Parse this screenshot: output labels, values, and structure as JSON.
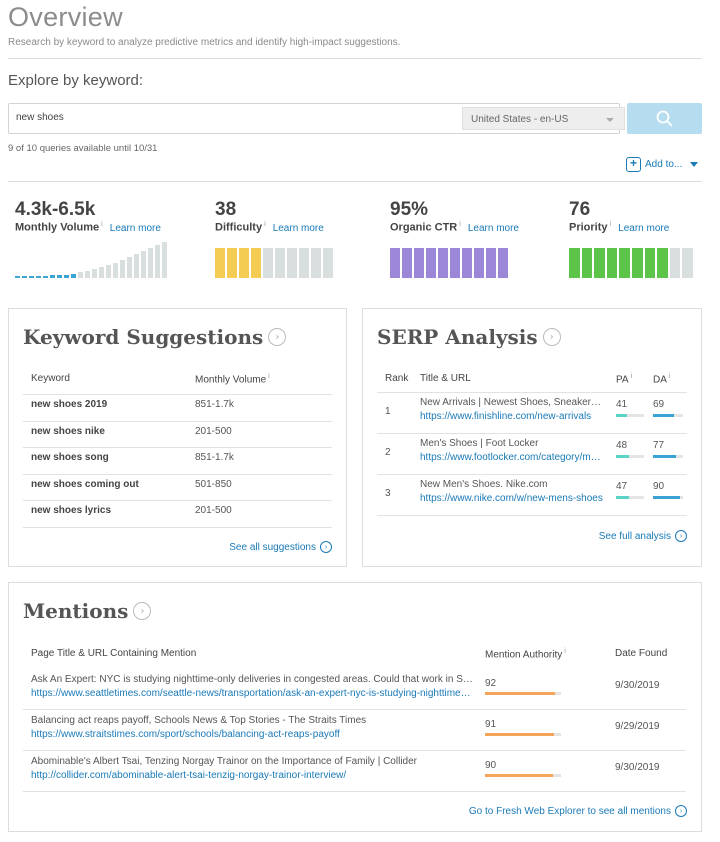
{
  "header": {
    "title": "Overview",
    "subtitle": "Research by keyword to analyze predictive metrics and identify high-impact suggestions."
  },
  "search": {
    "heading": "Explore by keyword:",
    "value": "new shoes",
    "locale": "United States - en-US",
    "queries_note": "9 of 10 queries available until 10/31",
    "add_to_label": "Add to...",
    "add_to_icon": "plus-box-icon",
    "button_icon": "search-icon"
  },
  "metrics": {
    "volume": {
      "value": "4.3k-6.5k",
      "label": "Monthly Volume",
      "learn": "Learn more",
      "color": "#3aa3d4"
    },
    "difficulty": {
      "value": "38",
      "label": "Difficulty",
      "learn": "Learn more",
      "level": 0.38,
      "color": "#f5cc53"
    },
    "ctr": {
      "value": "95%",
      "label": "Organic CTR",
      "learn": "Learn more",
      "level": 0.95,
      "color": "#9b86d8"
    },
    "priority": {
      "value": "76",
      "label": "Priority",
      "learn": "Learn more",
      "level": 0.76,
      "color": "#5dc44a"
    }
  },
  "suggestions": {
    "title": "Keyword Suggestions",
    "col_keyword": "Keyword",
    "col_volume": "Monthly Volume",
    "rows": [
      {
        "keyword": "new shoes 2019",
        "volume": "851-1.7k"
      },
      {
        "keyword": "new shoes nike",
        "volume": "201-500"
      },
      {
        "keyword": "new shoes song",
        "volume": "851-1.7k"
      },
      {
        "keyword": "new shoes coming out",
        "volume": "501-850"
      },
      {
        "keyword": "new shoes lyrics",
        "volume": "201-500"
      }
    ],
    "see_all": "See all suggestions"
  },
  "serp": {
    "title": "SERP Analysis",
    "col_rank": "Rank",
    "col_title": "Title & URL",
    "col_pa": "PA",
    "col_da": "DA",
    "rows": [
      {
        "rank": "1",
        "title": "New Arrivals | Newest Shoes, Sneakers, Clothing",
        "url": "https://www.finishline.com/new-arrivals",
        "pa": "41",
        "da": "69",
        "pa_level": 0.41,
        "da_level": 0.69
      },
      {
        "rank": "2",
        "title": "Men's Shoes | Foot Locker",
        "url": "https://www.footlocker.com/category/mens/shoes",
        "pa": "48",
        "da": "77",
        "pa_level": 0.48,
        "da_level": 0.77
      },
      {
        "rank": "3",
        "title": "New Men's Shoes. Nike.com",
        "url": "https://www.nike.com/w/new-mens-shoes",
        "pa": "47",
        "da": "90",
        "pa_level": 0.47,
        "da_level": 0.9
      }
    ],
    "pa_color": "#5bd3c6",
    "da_color": "#3aa3d4",
    "see_full": "See full analysis"
  },
  "mentions": {
    "title": "Mentions",
    "col_page": "Page Title & URL Containing Mention",
    "col_authority": "Mention Authority",
    "col_date": "Date Found",
    "rows": [
      {
        "title": "Ask An Expert: NYC is studying nighttime-only deliveries in congested areas. Could that work in Seattle?",
        "url": "https://www.seattletimes.com/seattle-news/transportation/ask-an-expert-nyc-is-studying-nighttime-only-deliveries",
        "authority": "92",
        "level": 0.92,
        "date": "9/30/2019"
      },
      {
        "title": "Balancing act reaps payoff, Schools News & Top Stories - The Straits Times",
        "url": "https://www.straitstimes.com/sport/schools/balancing-act-reaps-payoff",
        "authority": "91",
        "level": 0.91,
        "date": "9/29/2019"
      },
      {
        "title": "Abominable's Albert Tsai, Tenzing Norgay Trainor on the Importance of Family | Collider",
        "url": "http://collider.com/abominable-alert-tsai-tenzig-norgay-trainor-interview/",
        "authority": "90",
        "level": 0.9,
        "date": "9/30/2019"
      }
    ],
    "bar_color": "#f5a55a",
    "see_all": "Go to Fresh Web Explorer to see all mentions"
  }
}
